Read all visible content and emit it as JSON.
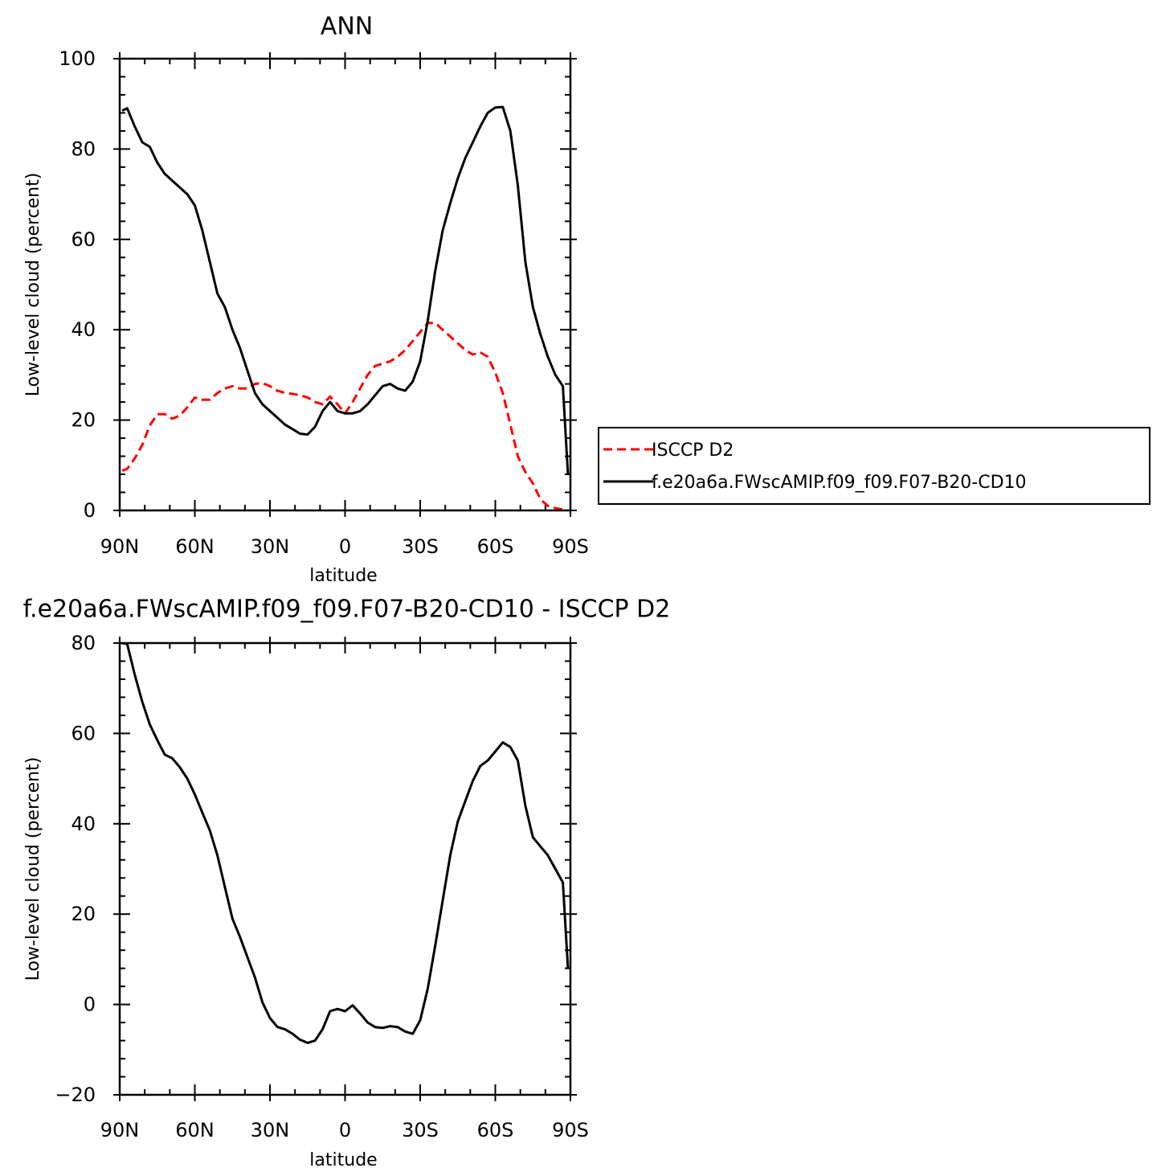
{
  "chart_data": [
    {
      "type": "line",
      "title": "ANN",
      "xlabel": "latitude",
      "ylabel": "Low-level cloud (percent)",
      "xlim": [
        90,
        -90
      ],
      "ylim": [
        0,
        100
      ],
      "x_ticks": [
        {
          "value": 90,
          "label": "90N"
        },
        {
          "value": 60,
          "label": "60N"
        },
        {
          "value": 30,
          "label": "30N"
        },
        {
          "value": 0,
          "label": "0"
        },
        {
          "value": -30,
          "label": "30S"
        },
        {
          "value": -60,
          "label": "60S"
        },
        {
          "value": -90,
          "label": "90S"
        }
      ],
      "y_ticks": [
        {
          "value": 0,
          "label": "0"
        },
        {
          "value": 20,
          "label": "20"
        },
        {
          "value": 40,
          "label": "40"
        },
        {
          "value": 60,
          "label": "60"
        },
        {
          "value": 80,
          "label": "80"
        },
        {
          "value": 100,
          "label": "100"
        }
      ],
      "legend_position": "right",
      "series": [
        {
          "name": "ISCCP D2",
          "color": "#ff0000",
          "dash": "dashed",
          "x": [
            89,
            87,
            84,
            81,
            78,
            75,
            72,
            69,
            66,
            63,
            60,
            57,
            54,
            51,
            48,
            45,
            42,
            39,
            36,
            33,
            30,
            27,
            24,
            21,
            18,
            15,
            12,
            9,
            6,
            3,
            0,
            -3,
            -6,
            -9,
            -12,
            -15,
            -18,
            -21,
            -24,
            -27,
            -30,
            -33,
            -36,
            -39,
            -42,
            -45,
            -48,
            -51,
            -54,
            -57,
            -60,
            -63,
            -66,
            -69,
            -72,
            -75,
            -78,
            -81,
            -84,
            -87,
            -89
          ],
          "y": [
            8.8,
            9.2,
            11.5,
            14.5,
            18.8,
            21.3,
            21.3,
            20.3,
            21.0,
            22.8,
            25.0,
            24.5,
            24.5,
            26.0,
            27.0,
            27.5,
            27.0,
            27.0,
            28.0,
            28.2,
            27.5,
            26.5,
            26.0,
            25.8,
            25.5,
            25.0,
            24.0,
            23.5,
            25.2,
            23.5,
            21.5,
            24.0,
            27.0,
            30.0,
            32.0,
            32.5,
            33.0,
            34.0,
            35.5,
            37.5,
            39.5,
            41.5,
            41.5,
            40.0,
            38.5,
            37.0,
            35.5,
            34.5,
            35.0,
            34.0,
            30.5,
            26.0,
            19.0,
            12.0,
            8.5,
            6.0,
            2.5,
            1.0,
            0.5,
            0.2,
            0.0
          ]
        },
        {
          "name": "f.e20a6a.FWscAMIP.f09_f09.F07-B20-CD10",
          "color": "#000000",
          "dash": "solid",
          "x": [
            89,
            87,
            84,
            81,
            78,
            75,
            72,
            69,
            66,
            63,
            60,
            57,
            54,
            51,
            48,
            45,
            42,
            39,
            36,
            33,
            30,
            27,
            24,
            21,
            18,
            15,
            12,
            9,
            6,
            3,
            0,
            -3,
            -6,
            -9,
            -12,
            -15,
            -18,
            -21,
            -24,
            -27,
            -30,
            -33,
            -36,
            -39,
            -42,
            -45,
            -48,
            -51,
            -54,
            -57,
            -60,
            -63,
            -66,
            -69,
            -72,
            -75,
            -78,
            -81,
            -84,
            -87,
            -89
          ],
          "y": [
            88.5,
            89.0,
            85.0,
            81.5,
            80.5,
            77.0,
            74.5,
            73.0,
            71.5,
            70.0,
            67.5,
            62.0,
            55.0,
            48.0,
            45.0,
            40.0,
            36.0,
            31.0,
            26.0,
            23.5,
            22.0,
            20.5,
            19.0,
            18.0,
            17.0,
            16.8,
            18.5,
            22.0,
            24.0,
            22.0,
            21.5,
            21.5,
            22.0,
            23.5,
            25.5,
            27.5,
            28.0,
            27.0,
            26.5,
            28.5,
            33.0,
            42.0,
            53.0,
            62.0,
            68.0,
            73.5,
            78.0,
            81.5,
            85.0,
            88.0,
            89.2,
            89.3,
            84.0,
            72.0,
            55.0,
            45.0,
            39.0,
            34.0,
            30.0,
            27.5,
            8.0
          ]
        }
      ]
    },
    {
      "type": "line",
      "title": "f.e20a6a.FWscAMIP.f09_f09.F07-B20-CD10 - ISCCP D2",
      "xlabel": "latitude",
      "ylabel": "Low-level cloud (percent)",
      "xlim": [
        90,
        -90
      ],
      "ylim": [
        -20,
        80
      ],
      "x_ticks": [
        {
          "value": 90,
          "label": "90N"
        },
        {
          "value": 60,
          "label": "60N"
        },
        {
          "value": 30,
          "label": "30N"
        },
        {
          "value": 0,
          "label": "0"
        },
        {
          "value": -30,
          "label": "30S"
        },
        {
          "value": -60,
          "label": "60S"
        },
        {
          "value": -90,
          "label": "90S"
        }
      ],
      "y_ticks": [
        {
          "value": -20,
          "label": "−20"
        },
        {
          "value": 0,
          "label": "0"
        },
        {
          "value": 20,
          "label": "20"
        },
        {
          "value": 40,
          "label": "40"
        },
        {
          "value": 60,
          "label": "60"
        },
        {
          "value": 80,
          "label": "80"
        }
      ],
      "series": [
        {
          "color": "#000000",
          "dash": "solid",
          "x": [
            89,
            87,
            84,
            81,
            78,
            75,
            72,
            69,
            66,
            63,
            60,
            57,
            54,
            51,
            48,
            45,
            42,
            39,
            36,
            33,
            30,
            27,
            24,
            21,
            18,
            15,
            12,
            9,
            6,
            3,
            0,
            -3,
            -6,
            -9,
            -12,
            -15,
            -18,
            -21,
            -24,
            -27,
            -30,
            -33,
            -36,
            -39,
            -42,
            -45,
            -48,
            -51,
            -54,
            -57,
            -60,
            -63,
            -66,
            -69,
            -72,
            -75,
            -78,
            -81,
            -84,
            -87,
            -89
          ],
          "y": [
            80.0,
            79.8,
            73.0,
            67.0,
            62.0,
            58.5,
            55.3,
            54.5,
            52.5,
            50.0,
            46.5,
            42.5,
            38.5,
            33.0,
            26.0,
            19.0,
            15.0,
            10.5,
            6.0,
            0.5,
            -3.0,
            -5.0,
            -5.5,
            -6.5,
            -7.8,
            -8.5,
            -8.0,
            -5.5,
            -1.5,
            -1.0,
            -1.5,
            -0.2,
            -2.0,
            -4.0,
            -5.0,
            -5.2,
            -4.8,
            -5.0,
            -6.0,
            -6.5,
            -3.5,
            3.5,
            13.0,
            23.0,
            33.0,
            40.5,
            45.0,
            49.5,
            52.8,
            54.0,
            56.0,
            58.0,
            57.0,
            54.0,
            44.0,
            37.0,
            35.0,
            33.0,
            30.0,
            27.0,
            8.0
          ]
        }
      ]
    }
  ]
}
